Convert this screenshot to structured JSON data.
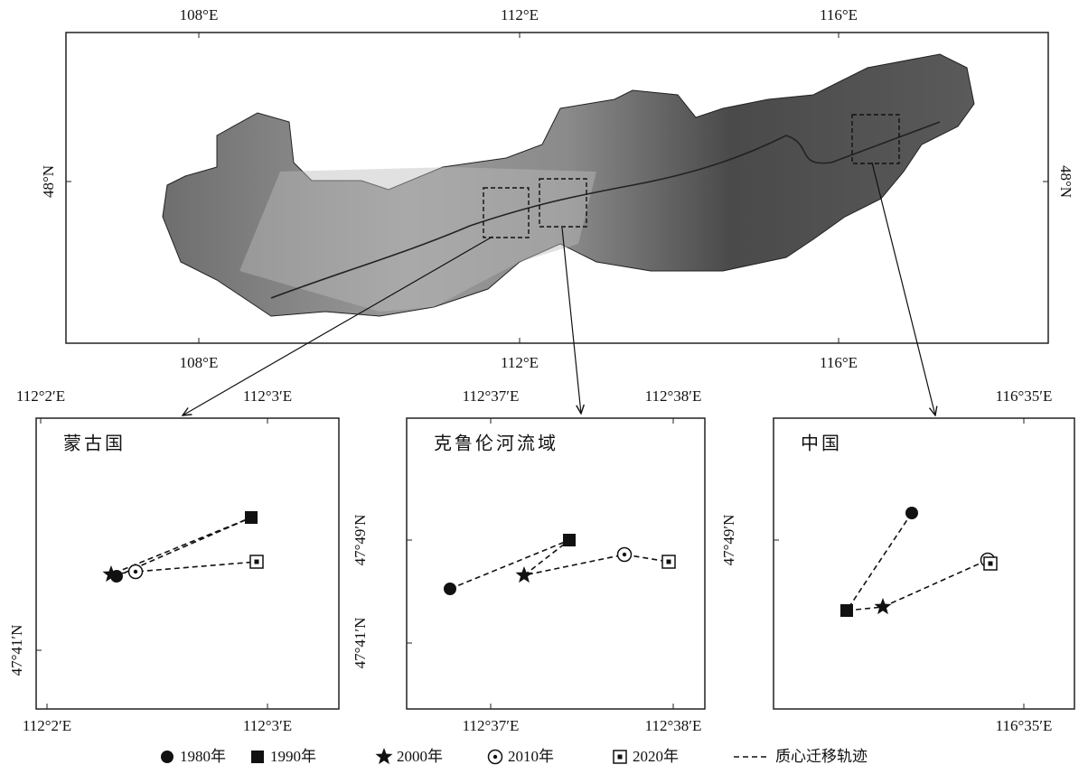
{
  "main_map": {
    "top_ticks": [
      "108°E",
      "112°E",
      "116°E"
    ],
    "bottom_ticks": [
      "108°E",
      "112°E",
      "116°E"
    ],
    "left_ticks": [
      "48°N"
    ],
    "right_ticks": [
      "48°N"
    ]
  },
  "insets": [
    {
      "title": "蒙古国",
      "top_ticks": [
        "112°2′E",
        "112°3′E"
      ],
      "bottom_ticks": [
        "112°2′E",
        "112°3′E"
      ],
      "left_ticks": [
        "47°41′N"
      ]
    },
    {
      "title": "克鲁伦河流域",
      "top_ticks": [
        "112°37′E",
        "112°38′E"
      ],
      "bottom_ticks": [
        "112°37′E",
        "112°38′E"
      ],
      "left_ticks": [
        "47°49′N",
        "47°41′N"
      ]
    },
    {
      "title": "中国",
      "top_ticks": [
        "116°35′E"
      ],
      "bottom_ticks": [
        "116°35′E"
      ],
      "left_ticks": [
        "47°49′N"
      ]
    }
  ],
  "legend": [
    "1980年",
    "1990年",
    "2000年",
    "2010年",
    "2020年",
    "质心迁移轨迹"
  ]
}
